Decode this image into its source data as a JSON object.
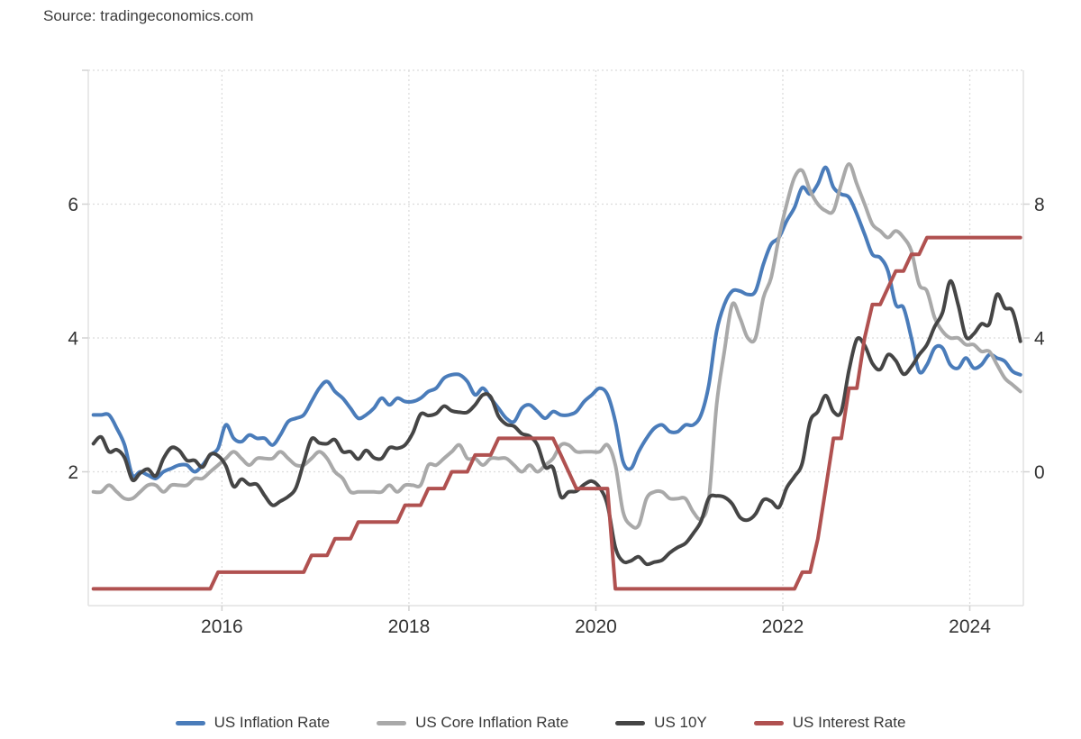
{
  "source_label": "Source: tradingeconomics.com",
  "chart_data": {
    "type": "line",
    "title": "",
    "xlabel": "",
    "ylabel": "",
    "grid": true,
    "legend_position": "bottom",
    "x_axis": {
      "range": [
        2014.57,
        2024.573
      ],
      "ticks": [
        2016,
        2018,
        2020,
        2022,
        2024
      ],
      "tick_labels": [
        "2016",
        "2018",
        "2020",
        "2022",
        "2024"
      ]
    },
    "left_axis": {
      "range": [
        0,
        8
      ],
      "ticks": [
        2,
        4,
        6
      ],
      "tick_labels": [
        "2",
        "4",
        "6"
      ]
    },
    "right_axis": {
      "range": [
        -4,
        12
      ],
      "ticks": [
        0,
        4,
        8
      ],
      "tick_labels": [
        "0",
        "4",
        "8"
      ]
    },
    "colors": {
      "inflation": "#4a7cba",
      "core_inflation": "#a9a9a9",
      "us10y": "#454545",
      "interest": "#b05150"
    },
    "series": [
      {
        "name": "US Inflation Rate",
        "color": "#4a7cba",
        "axis": "right",
        "smooth": true,
        "start": 2014.625,
        "frequency": "monthly",
        "values": [
          1.7,
          1.7,
          1.7,
          1.3,
          0.8,
          -0.1,
          0,
          -0.1,
          -0.2,
          0,
          0.1,
          0.2,
          0.2,
          0,
          0.2,
          0.5,
          0.7,
          1.4,
          1,
          0.9,
          1.1,
          1,
          1,
          0.8,
          1.1,
          1.5,
          1.6,
          1.7,
          2.1,
          2.5,
          2.7,
          2.4,
          2.2,
          1.9,
          1.6,
          1.7,
          1.9,
          2.2,
          2,
          2.2,
          2.1,
          2.1,
          2.2,
          2.4,
          2.5,
          2.8,
          2.9,
          2.9,
          2.7,
          2.3,
          2.5,
          2.2,
          1.9,
          1.6,
          1.5,
          1.9,
          2,
          1.8,
          1.6,
          1.8,
          1.7,
          1.7,
          1.8,
          2.1,
          2.3,
          2.5,
          2.3,
          1.5,
          0.3,
          0.1,
          0.6,
          1,
          1.3,
          1.4,
          1.2,
          1.2,
          1.4,
          1.4,
          1.7,
          2.6,
          4.2,
          5,
          5.4,
          5.4,
          5.3,
          5.4,
          6.2,
          6.8,
          7,
          7.5,
          7.9,
          8.5,
          8.3,
          8.6,
          9.1,
          8.5,
          8.3,
          8.2,
          7.7,
          7.1,
          6.5,
          6.4,
          6,
          5,
          4.9,
          4,
          3,
          3.2,
          3.7,
          3.7,
          3.2,
          3.1,
          3.4,
          3.1,
          3.2,
          3.5,
          3.4,
          3.3,
          3,
          2.9
        ]
      },
      {
        "name": "US Core Inflation Rate",
        "color": "#a9a9a9",
        "axis": "left",
        "smooth": true,
        "start": 2014.625,
        "frequency": "monthly",
        "values": [
          1.7,
          1.7,
          1.8,
          1.7,
          1.6,
          1.6,
          1.7,
          1.8,
          1.8,
          1.7,
          1.8,
          1.8,
          1.8,
          1.9,
          1.9,
          2,
          2.1,
          2.2,
          2.3,
          2.2,
          2.1,
          2.2,
          2.2,
          2.2,
          2.3,
          2.2,
          2.1,
          2.1,
          2.2,
          2.3,
          2.2,
          2,
          1.9,
          1.7,
          1.7,
          1.7,
          1.7,
          1.7,
          1.8,
          1.7,
          1.8,
          1.8,
          1.8,
          2.1,
          2.1,
          2.2,
          2.3,
          2.4,
          2.2,
          2.2,
          2.1,
          2.2,
          2.2,
          2.2,
          2.1,
          2,
          2.1,
          2,
          2.1,
          2.2,
          2.4,
          2.4,
          2.3,
          2.3,
          2.3,
          2.3,
          2.4,
          2.1,
          1.4,
          1.2,
          1.2,
          1.6,
          1.7,
          1.7,
          1.6,
          1.6,
          1.6,
          1.4,
          1.3,
          1.6,
          3,
          3.8,
          4.5,
          4.3,
          4,
          4,
          4.6,
          4.9,
          5.5,
          6,
          6.4,
          6.5,
          6.2,
          6,
          5.9,
          5.9,
          6.3,
          6.6,
          6.3,
          6,
          5.7,
          5.6,
          5.5,
          5.6,
          5.5,
          5.3,
          4.8,
          4.7,
          4.3,
          4.1,
          4,
          4,
          3.9,
          3.9,
          3.8,
          3.8,
          3.6,
          3.4,
          3.3,
          3.2
        ]
      },
      {
        "name": "US 10Y",
        "color": "#454545",
        "axis": "left",
        "smooth": true,
        "start": 2014.625,
        "frequency": "monthly",
        "values": [
          2.42,
          2.52,
          2.3,
          2.33,
          2.21,
          1.88,
          1.98,
          2.04,
          1.94,
          2.2,
          2.36,
          2.32,
          2.17,
          2.17,
          2.07,
          2.26,
          2.24,
          2.09,
          1.78,
          1.89,
          1.81,
          1.81,
          1.64,
          1.5,
          1.56,
          1.63,
          1.76,
          2.14,
          2.49,
          2.43,
          2.42,
          2.48,
          2.3,
          2.3,
          2.19,
          2.32,
          2.21,
          2.2,
          2.36,
          2.35,
          2.4,
          2.58,
          2.86,
          2.84,
          2.87,
          2.98,
          2.91,
          2.89,
          2.89,
          3,
          3.15,
          3.12,
          2.83,
          2.71,
          2.68,
          2.57,
          2.53,
          2.4,
          2.07,
          2.06,
          1.63,
          1.7,
          1.71,
          1.81,
          1.86,
          1.76,
          1.5,
          0.87,
          0.66,
          0.67,
          0.73,
          0.62,
          0.65,
          0.68,
          0.79,
          0.87,
          0.93,
          1.08,
          1.26,
          1.61,
          1.64,
          1.62,
          1.52,
          1.32,
          1.28,
          1.37,
          1.58,
          1.56,
          1.47,
          1.76,
          1.93,
          2.13,
          2.75,
          2.9,
          3.14,
          2.9,
          2.9,
          3.52,
          3.98,
          3.89,
          3.62,
          3.53,
          3.75,
          3.66,
          3.46,
          3.57,
          3.75,
          3.9,
          4.17,
          4.38,
          4.85,
          4.5,
          4.02,
          4.06,
          4.21,
          4.21,
          4.65,
          4.45,
          4.4,
          3.95
        ]
      },
      {
        "name": "US Interest Rate",
        "color": "#b05150",
        "axis": "left",
        "smooth": false,
        "start": 2014.625,
        "frequency": "monthly",
        "values": [
          0.25,
          0.25,
          0.25,
          0.25,
          0.25,
          0.25,
          0.25,
          0.25,
          0.25,
          0.25,
          0.25,
          0.25,
          0.25,
          0.25,
          0.25,
          0.25,
          0.5,
          0.5,
          0.5,
          0.5,
          0.5,
          0.5,
          0.5,
          0.5,
          0.5,
          0.5,
          0.5,
          0.5,
          0.75,
          0.75,
          0.75,
          1,
          1,
          1,
          1.25,
          1.25,
          1.25,
          1.25,
          1.25,
          1.25,
          1.5,
          1.5,
          1.5,
          1.75,
          1.75,
          1.75,
          2,
          2,
          2,
          2.25,
          2.25,
          2.25,
          2.5,
          2.5,
          2.5,
          2.5,
          2.5,
          2.5,
          2.5,
          2.5,
          2.25,
          2,
          1.75,
          1.75,
          1.75,
          1.75,
          1.75,
          0.25,
          0.25,
          0.25,
          0.25,
          0.25,
          0.25,
          0.25,
          0.25,
          0.25,
          0.25,
          0.25,
          0.25,
          0.25,
          0.25,
          0.25,
          0.25,
          0.25,
          0.25,
          0.25,
          0.25,
          0.25,
          0.25,
          0.25,
          0.25,
          0.5,
          0.5,
          1,
          1.75,
          2.5,
          2.5,
          3.25,
          3.25,
          4,
          4.5,
          4.5,
          4.75,
          5,
          5,
          5.25,
          5.25,
          5.5,
          5.5,
          5.5,
          5.5,
          5.5,
          5.5,
          5.5,
          5.5,
          5.5,
          5.5,
          5.5,
          5.5,
          5.5
        ]
      }
    ]
  }
}
